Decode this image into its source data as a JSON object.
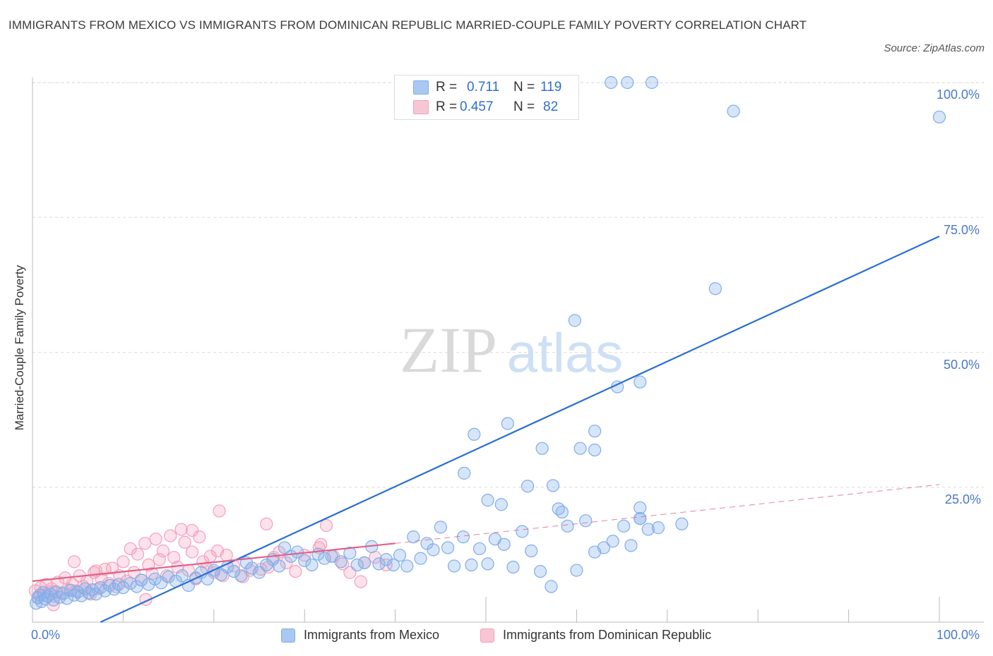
{
  "title": "IMMIGRANTS FROM MEXICO VS IMMIGRANTS FROM DOMINICAN REPUBLIC MARRIED-COUPLE FAMILY POVERTY CORRELATION CHART",
  "source": "Source: ZipAtlas.com",
  "watermark": {
    "zip": "ZIP",
    "atlas": "atlas"
  },
  "stats": [
    {
      "r_label": "R =",
      "r_value": "0.711",
      "n_label": "N =",
      "n_value": "119",
      "color": "#a9c8f2"
    },
    {
      "r_label": "R =",
      "r_value": "0.457",
      "n_label": "N =",
      "n_value": "82",
      "color": "#f7b8cc"
    }
  ],
  "legend": [
    {
      "label": "Immigrants from Mexico",
      "color": "#a9c8f2"
    },
    {
      "label": "Immigrants from Dominican Republic",
      "color": "#f7b8cc"
    }
  ],
  "chart_data": {
    "type": "scatter",
    "ylabel": "Married-Couple Family Poverty",
    "xlabel": "",
    "xlim": [
      0,
      100
    ],
    "ylim": [
      0,
      100
    ],
    "x_tick_labels": [
      "0.0%",
      "100.0%"
    ],
    "y_tick_labels": [
      "25.0%",
      "50.0%",
      "75.0%",
      "100.0%"
    ],
    "y_tick_values": [
      25,
      50,
      75,
      100
    ],
    "grid": "dashed horizontal",
    "legend_position": "bottom",
    "series": [
      {
        "name": "Immigrants from Mexico",
        "color": "#7fadea",
        "trend": {
          "x": [
            7.5,
            100
          ],
          "y": [
            0,
            71.5
          ],
          "style": "solid",
          "color": "#2a6fd1"
        },
        "points": [
          [
            0.4,
            3.5
          ],
          [
            0.6,
            4.5
          ],
          [
            0.8,
            5.0
          ],
          [
            1.0,
            3.8
          ],
          [
            1.2,
            5.5
          ],
          [
            1.4,
            4.3
          ],
          [
            1.7,
            4.8
          ],
          [
            2.0,
            5.2
          ],
          [
            2.3,
            4.1
          ],
          [
            2.6,
            5.6
          ],
          [
            3.0,
            4.6
          ],
          [
            3.4,
            5.3
          ],
          [
            3.8,
            4.4
          ],
          [
            4.2,
            5.9
          ],
          [
            4.6,
            5.0
          ],
          [
            5.0,
            5.6
          ],
          [
            5.4,
            4.9
          ],
          [
            5.8,
            6.2
          ],
          [
            6.2,
            5.4
          ],
          [
            6.6,
            6.0
          ],
          [
            7.0,
            5.2
          ],
          [
            7.5,
            6.4
          ],
          [
            8.0,
            5.8
          ],
          [
            8.5,
            6.8
          ],
          [
            9.0,
            6.1
          ],
          [
            9.5,
            7.0
          ],
          [
            10.0,
            6.4
          ],
          [
            10.8,
            7.2
          ],
          [
            11.5,
            6.6
          ],
          [
            12.0,
            7.8
          ],
          [
            12.8,
            7.0
          ],
          [
            13.5,
            8.0
          ],
          [
            14.2,
            7.3
          ],
          [
            15.0,
            8.4
          ],
          [
            15.8,
            7.6
          ],
          [
            16.5,
            8.6
          ],
          [
            17.2,
            6.8
          ],
          [
            18.0,
            8.2
          ],
          [
            18.6,
            9.2
          ],
          [
            19.3,
            8.0
          ],
          [
            20.0,
            9.6
          ],
          [
            20.8,
            8.8
          ],
          [
            21.5,
            10.2
          ],
          [
            22.2,
            9.4
          ],
          [
            23.0,
            8.6
          ],
          [
            23.6,
            11.0
          ],
          [
            24.2,
            10.0
          ],
          [
            25.0,
            9.2
          ],
          [
            25.8,
            10.6
          ],
          [
            26.5,
            11.6
          ],
          [
            27.2,
            10.4
          ],
          [
            27.8,
            13.8
          ],
          [
            28.5,
            12.2
          ],
          [
            29.2,
            13.0
          ],
          [
            30.0,
            11.4
          ],
          [
            30.8,
            10.6
          ],
          [
            31.5,
            12.6
          ],
          [
            32.2,
            11.8
          ],
          [
            33.0,
            12.2
          ],
          [
            34.0,
            11.2
          ],
          [
            35.0,
            12.8
          ],
          [
            35.8,
            10.6
          ],
          [
            36.6,
            11.0
          ],
          [
            37.4,
            14.0
          ],
          [
            38.2,
            10.8
          ],
          [
            39.0,
            11.6
          ],
          [
            39.8,
            10.6
          ],
          [
            40.5,
            12.4
          ],
          [
            41.3,
            10.4
          ],
          [
            42.0,
            15.8
          ],
          [
            42.8,
            11.8
          ],
          [
            43.5,
            14.6
          ],
          [
            44.2,
            13.4
          ],
          [
            45.0,
            17.6
          ],
          [
            45.8,
            13.8
          ],
          [
            46.5,
            10.4
          ],
          [
            47.5,
            15.8
          ],
          [
            48.4,
            10.6
          ],
          [
            49.3,
            13.6
          ],
          [
            50.2,
            10.8
          ],
          [
            51.0,
            15.4
          ],
          [
            52.0,
            14.4
          ],
          [
            53.0,
            10.2
          ],
          [
            54.0,
            16.8
          ],
          [
            55.0,
            13.2
          ],
          [
            56.0,
            9.4
          ],
          [
            57.2,
            6.6
          ],
          [
            58.0,
            21.0
          ],
          [
            59.0,
            17.8
          ],
          [
            60.0,
            9.6
          ],
          [
            61.0,
            18.8
          ],
          [
            62.0,
            13.0
          ],
          [
            63.0,
            13.8
          ],
          [
            64.0,
            15.0
          ],
          [
            65.2,
            17.8
          ],
          [
            66.0,
            14.2
          ],
          [
            67.0,
            19.2
          ],
          [
            47.6,
            27.6
          ],
          [
            48.7,
            34.8
          ],
          [
            50.2,
            22.6
          ],
          [
            51.7,
            21.8
          ],
          [
            52.4,
            36.8
          ],
          [
            54.6,
            25.2
          ],
          [
            56.2,
            32.2
          ],
          [
            57.4,
            25.3
          ],
          [
            58.4,
            20.4
          ],
          [
            59.8,
            55.9
          ],
          [
            60.4,
            32.2
          ],
          [
            62.0,
            35.4
          ],
          [
            62.0,
            31.9
          ],
          [
            64.5,
            43.6
          ],
          [
            67.0,
            21.2
          ],
          [
            67.0,
            19.2
          ],
          [
            67.0,
            44.5
          ],
          [
            67.9,
            17.2
          ],
          [
            69.0,
            17.5
          ],
          [
            71.6,
            18.2
          ],
          [
            75.3,
            61.8
          ],
          [
            63.8,
            100
          ],
          [
            65.6,
            100
          ],
          [
            68.3,
            100
          ],
          [
            77.3,
            94.7
          ],
          [
            100,
            93.6
          ]
        ]
      },
      {
        "name": "Immigrants from Dominican Republic",
        "color": "#f4a0bb",
        "trend": {
          "x": [
            0,
            40
          ],
          "y": [
            7.6,
            14.6
          ],
          "style": "solid",
          "color": "#e0608a",
          "ext": {
            "x": [
              40,
              100
            ],
            "y": [
              14.6,
              25.5
            ],
            "style": "dashed"
          }
        },
        "points": [
          [
            0.3,
            5.8
          ],
          [
            0.6,
            4.6
          ],
          [
            0.9,
            6.4
          ],
          [
            1.2,
            5.0
          ],
          [
            1.5,
            7.0
          ],
          [
            1.8,
            5.6
          ],
          [
            2.1,
            6.2
          ],
          [
            2.4,
            4.8
          ],
          [
            2.8,
            7.4
          ],
          [
            3.2,
            5.4
          ],
          [
            3.6,
            8.2
          ],
          [
            4.0,
            6.0
          ],
          [
            4.4,
            7.0
          ],
          [
            4.8,
            5.8
          ],
          [
            5.2,
            8.6
          ],
          [
            5.6,
            6.6
          ],
          [
            6.0,
            7.6
          ],
          [
            6.4,
            5.2
          ],
          [
            6.8,
            9.2
          ],
          [
            7.2,
            6.2
          ],
          [
            7.6,
            8.0
          ],
          [
            8.0,
            9.8
          ],
          [
            8.4,
            7.2
          ],
          [
            8.8,
            10.0
          ],
          [
            9.2,
            6.6
          ],
          [
            9.6,
            8.6
          ],
          [
            10.0,
            11.2
          ],
          [
            10.4,
            7.6
          ],
          [
            10.8,
            13.6
          ],
          [
            11.2,
            9.2
          ],
          [
            11.6,
            12.6
          ],
          [
            12.0,
            7.8
          ],
          [
            12.4,
            14.6
          ],
          [
            12.8,
            10.6
          ],
          [
            13.2,
            9.0
          ],
          [
            13.6,
            15.4
          ],
          [
            14.0,
            11.6
          ],
          [
            14.4,
            13.2
          ],
          [
            14.8,
            8.6
          ],
          [
            15.2,
            16.0
          ],
          [
            15.6,
            12.0
          ],
          [
            16.0,
            10.2
          ],
          [
            16.4,
            17.2
          ],
          [
            16.8,
            14.8
          ],
          [
            17.2,
            9.6
          ],
          [
            17.6,
            13.0
          ],
          [
            18.0,
            8.0
          ],
          [
            18.4,
            15.8
          ],
          [
            18.8,
            11.2
          ],
          [
            19.2,
            10.0
          ],
          [
            19.6,
            12.2
          ],
          [
            20.0,
            9.2
          ],
          [
            20.4,
            13.2
          ],
          [
            21.0,
            8.6
          ],
          [
            21.4,
            12.4
          ],
          [
            22.2,
            10.4
          ],
          [
            23.2,
            8.4
          ],
          [
            24.0,
            9.6
          ],
          [
            25.2,
            9.8
          ],
          [
            26.0,
            10.2
          ],
          [
            26.6,
            12.0
          ],
          [
            27.2,
            13.0
          ],
          [
            28.0,
            11.0
          ],
          [
            29.0,
            9.4
          ],
          [
            30.0,
            12.4
          ],
          [
            31.6,
            13.8
          ],
          [
            33.2,
            12.2
          ],
          [
            34.2,
            10.8
          ],
          [
            36.6,
            11.0
          ],
          [
            37.8,
            12.0
          ],
          [
            39.0,
            10.6
          ],
          [
            2.3,
            3.2
          ],
          [
            4.6,
            11.2
          ],
          [
            7.0,
            9.5
          ],
          [
            12.5,
            4.2
          ],
          [
            17.6,
            17.0
          ],
          [
            20.6,
            20.6
          ],
          [
            25.8,
            18.2
          ],
          [
            32.4,
            17.9
          ],
          [
            31.8,
            14.4
          ],
          [
            35.0,
            9.2
          ],
          [
            36.2,
            7.5
          ]
        ]
      }
    ]
  }
}
